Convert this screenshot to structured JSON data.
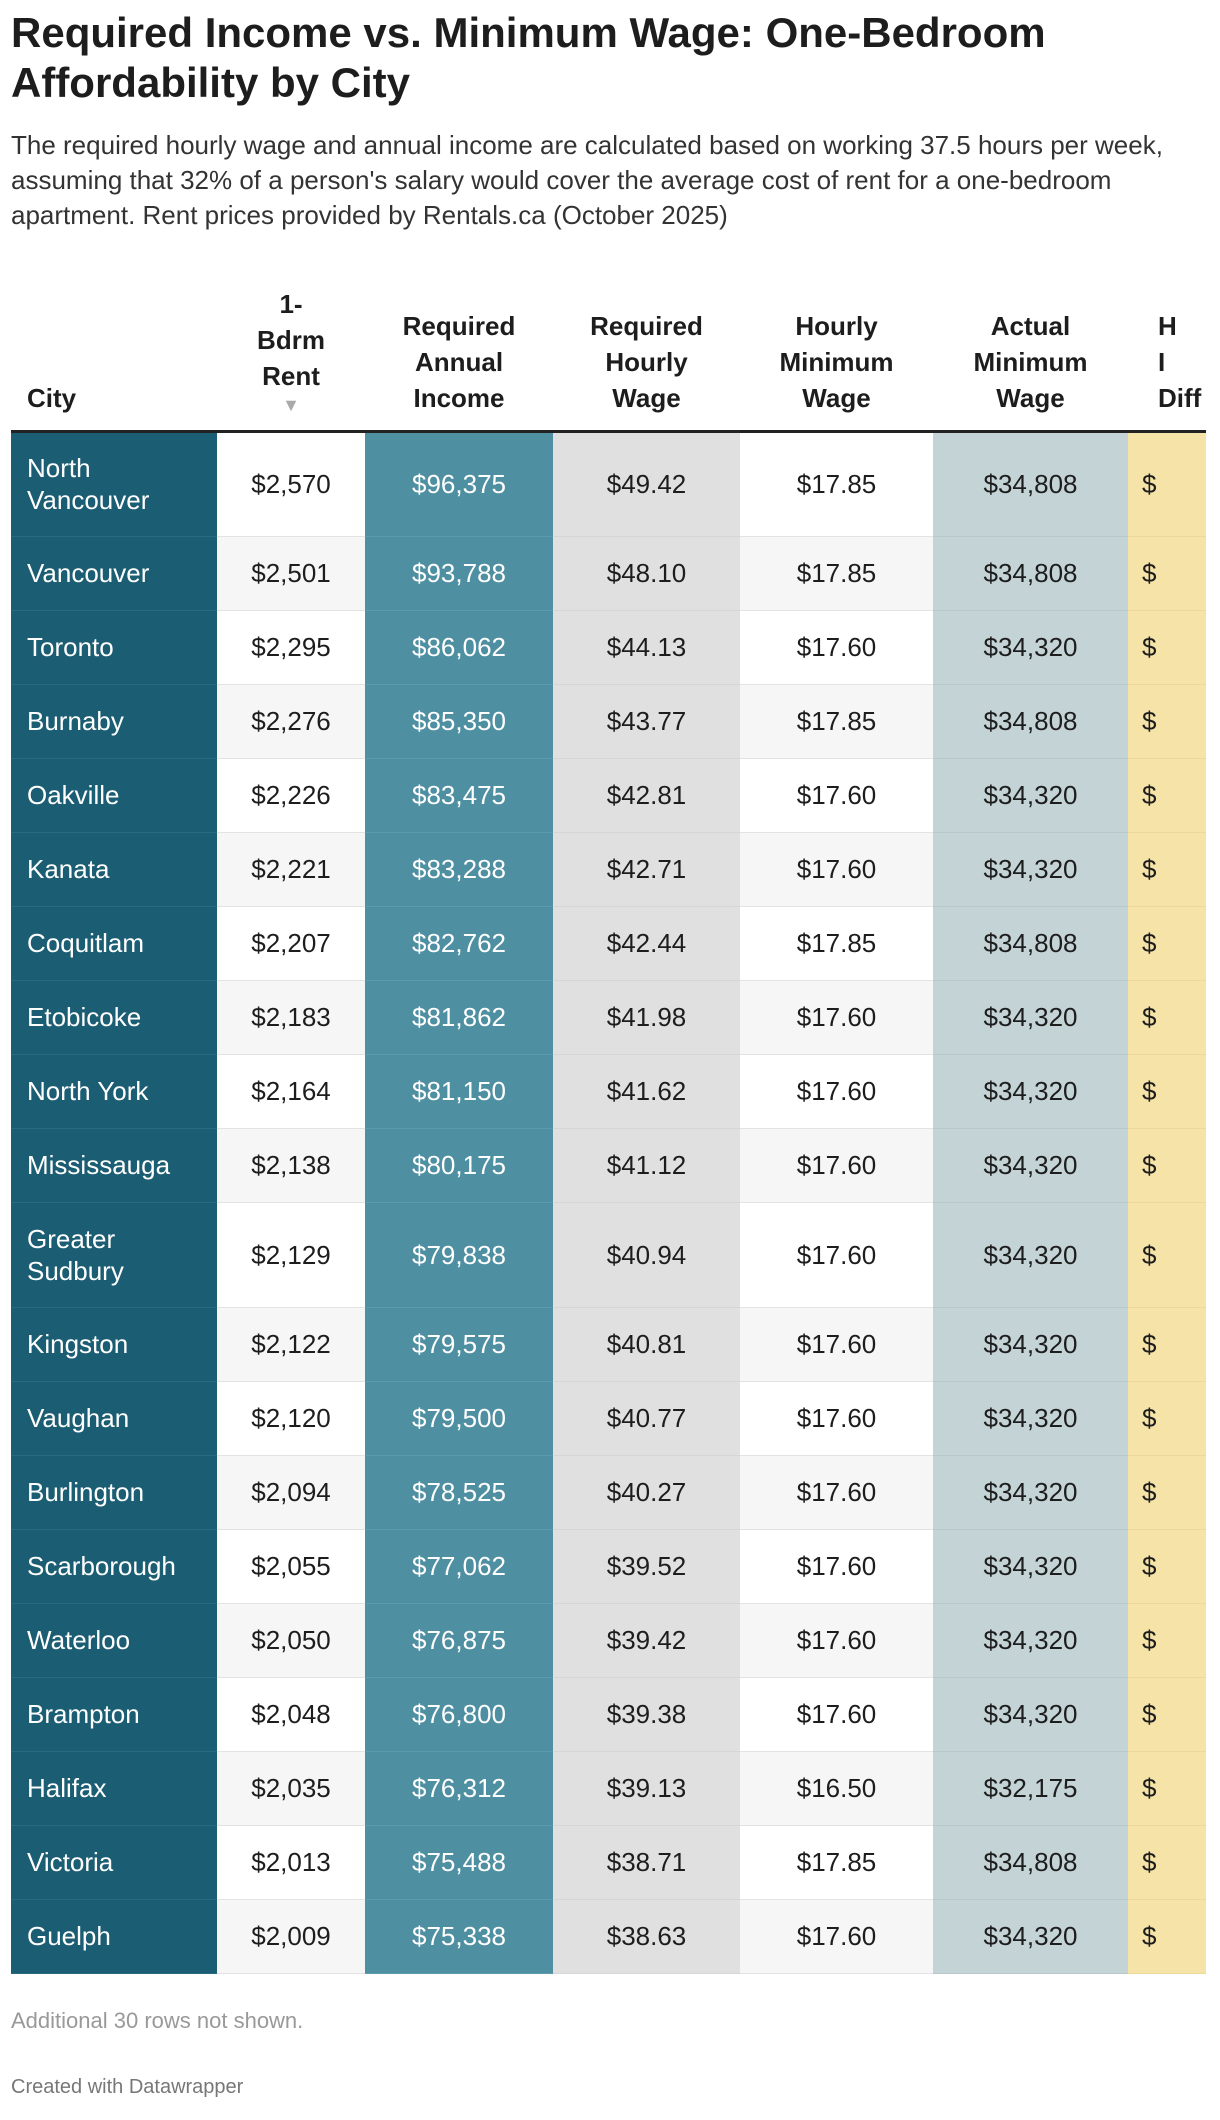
{
  "header": {
    "title": "Required Income vs. Minimum Wage: One-Bedroom Affordability by City",
    "description": "The required hourly wage and annual income are calculated based on working 37.5 hours per week, assuming that 32% of a person's salary would cover the average cost of rent for a one-bedroom apartment. Rent prices provided by Rentals.ca (October 2025)"
  },
  "table": {
    "columns": [
      "City",
      "1-\nBdrm\nRent",
      "Required\nAnnual\nIncome",
      "Required\nHourly\nWage",
      "Hourly\nMinimum\nWage",
      "Actual\nMinimum\nWage",
      "H\nI\nDiff"
    ],
    "rows": [
      [
        "North Vancouver",
        "$2,570",
        "$96,375",
        "$49.42",
        "$17.85",
        "$34,808",
        "$"
      ],
      [
        "Vancouver",
        "$2,501",
        "$93,788",
        "$48.10",
        "$17.85",
        "$34,808",
        "$"
      ],
      [
        "Toronto",
        "$2,295",
        "$86,062",
        "$44.13",
        "$17.60",
        "$34,320",
        "$"
      ],
      [
        "Burnaby",
        "$2,276",
        "$85,350",
        "$43.77",
        "$17.85",
        "$34,808",
        "$"
      ],
      [
        "Oakville",
        "$2,226",
        "$83,475",
        "$42.81",
        "$17.60",
        "$34,320",
        "$"
      ],
      [
        "Kanata",
        "$2,221",
        "$83,288",
        "$42.71",
        "$17.60",
        "$34,320",
        "$"
      ],
      [
        "Coquitlam",
        "$2,207",
        "$82,762",
        "$42.44",
        "$17.85",
        "$34,808",
        "$"
      ],
      [
        "Etobicoke",
        "$2,183",
        "$81,862",
        "$41.98",
        "$17.60",
        "$34,320",
        "$"
      ],
      [
        "North York",
        "$2,164",
        "$81,150",
        "$41.62",
        "$17.60",
        "$34,320",
        "$"
      ],
      [
        "Mississauga",
        "$2,138",
        "$80,175",
        "$41.12",
        "$17.60",
        "$34,320",
        "$"
      ],
      [
        "Greater Sudbury",
        "$2,129",
        "$79,838",
        "$40.94",
        "$17.60",
        "$34,320",
        "$"
      ],
      [
        "Kingston",
        "$2,122",
        "$79,575",
        "$40.81",
        "$17.60",
        "$34,320",
        "$"
      ],
      [
        "Vaughan",
        "$2,120",
        "$79,500",
        "$40.77",
        "$17.60",
        "$34,320",
        "$"
      ],
      [
        "Burlington",
        "$2,094",
        "$78,525",
        "$40.27",
        "$17.60",
        "$34,320",
        "$"
      ],
      [
        "Scarborough",
        "$2,055",
        "$77,062",
        "$39.52",
        "$17.60",
        "$34,320",
        "$"
      ],
      [
        "Waterloo",
        "$2,050",
        "$76,875",
        "$39.42",
        "$17.60",
        "$34,320",
        "$"
      ],
      [
        "Brampton",
        "$2,048",
        "$76,800",
        "$39.38",
        "$17.60",
        "$34,320",
        "$"
      ],
      [
        "Halifax",
        "$2,035",
        "$76,312",
        "$39.13",
        "$16.50",
        "$32,175",
        "$"
      ],
      [
        "Victoria",
        "$2,013",
        "$75,488",
        "$38.71",
        "$17.85",
        "$34,808",
        "$"
      ],
      [
        "Guelph",
        "$2,009",
        "$75,338",
        "$38.63",
        "$17.60",
        "$34,320",
        "$"
      ]
    ]
  },
  "footer": {
    "note": "Additional 30 rows not shown.",
    "credit": "Created with Datawrapper"
  }
}
